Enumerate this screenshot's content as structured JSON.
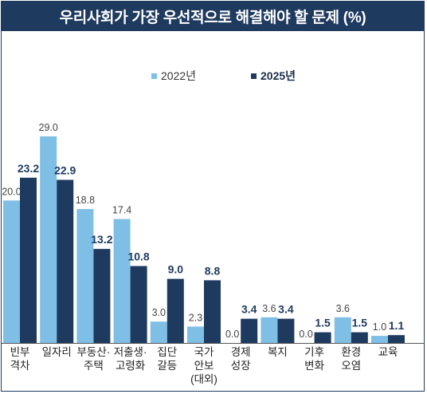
{
  "title": "우리사회가 가장 우선적으로 해결해야 할 문제 (%)",
  "colors": {
    "series_2022": "#7fbfe6",
    "series_2025": "#1f3a5f",
    "header": "#1f3a5f"
  },
  "chart_data": {
    "type": "bar",
    "title": "우리사회가 가장 우선적으로 해결해야 할 문제 (%)",
    "xlabel": "",
    "ylabel": "",
    "ylim": [
      0,
      30
    ],
    "grid": false,
    "legend_position": "top-center",
    "categories": [
      [
        "빈부",
        "격차"
      ],
      [
        "일자리"
      ],
      [
        "부동산·",
        "주택"
      ],
      [
        "저출생·",
        "고령화"
      ],
      [
        "집단",
        "갈등"
      ],
      [
        "국가",
        "안보",
        "(대외)"
      ],
      [
        "경제",
        "성장"
      ],
      [
        "복지"
      ],
      [
        "기후",
        "변화"
      ],
      [
        "환경",
        "오염"
      ],
      [
        "교육"
      ]
    ],
    "series": [
      {
        "name": "2022년",
        "values": [
          20.0,
          29.0,
          18.8,
          17.4,
          3.0,
          2.3,
          0.0,
          3.6,
          0.0,
          3.6,
          1.0
        ],
        "labels": [
          "20.0",
          "29.0",
          "18.8",
          "17.4",
          "3.0",
          "2.3",
          "0.0",
          "3.6",
          "0.0",
          "3.6",
          "1.0"
        ]
      },
      {
        "name": "2025년",
        "values": [
          23.2,
          22.9,
          13.2,
          10.8,
          9.0,
          8.8,
          3.4,
          3.4,
          1.5,
          1.5,
          1.1
        ],
        "labels": [
          "23.2",
          "22.9",
          "13.2",
          "10.8",
          "9.0",
          "8.8",
          "3.4",
          "3.4",
          "1.5",
          "1.5",
          "1.1"
        ]
      }
    ]
  }
}
